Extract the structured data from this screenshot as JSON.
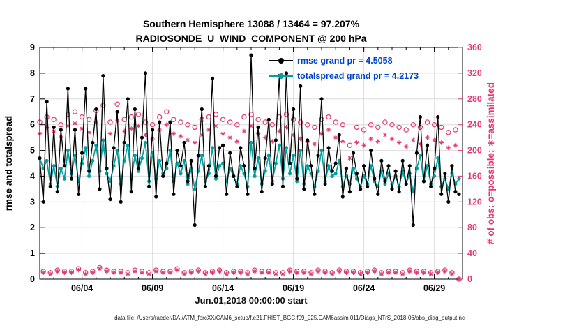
{
  "colors": {
    "rmse_black": "#000000",
    "spread_teal": "#00a0a0",
    "obs_pink": "#e03a76",
    "legend_text": "#0044cc",
    "grid": "#dcdcdc"
  },
  "chart_data": {
    "type": "line",
    "title": "Southern Hemisphere 13088 / 13464 = 97.207%",
    "subtitle": "RADIOSONDE_U_WIND_COMPONENT @ 200 hPa",
    "xlabel": "Jun.01,2018 00:00:00 start",
    "ylabel_left": "rmse and totalspread",
    "ylabel_right": "# of obs: o=possible; ∗=assimilated",
    "caption": "data file: /Users/raeder/DAI/ATM_forcXX/CAM6_setup/f.e21.FHIST_BGC.f09_025.CAM6assim.011/Diags_NTrS_2018-06/obs_diag_output.nc",
    "xlim": [
      0,
      30
    ],
    "ylim_left": [
      0,
      9
    ],
    "ylim_right": [
      0,
      360
    ],
    "x_start_day": 0,
    "x_step_days": 0.25,
    "x_unit": "days since Jun 1, 2018 00:00 UTC (4 obs times per day)",
    "yticks_left": [
      0,
      1,
      2,
      3,
      4,
      5,
      6,
      7,
      8,
      9
    ],
    "yticks_right": [
      0,
      40,
      80,
      120,
      160,
      200,
      240,
      280,
      320,
      360
    ],
    "xticks": [
      {
        "day": 3,
        "label": "06/04"
      },
      {
        "day": 8,
        "label": "06/09"
      },
      {
        "day": 13,
        "label": "06/14"
      },
      {
        "day": 18,
        "label": "06/19"
      },
      {
        "day": 23,
        "label": "06/24"
      },
      {
        "day": 28,
        "label": "06/29"
      }
    ],
    "grid": true,
    "legend_position": "top-center-inside",
    "series": [
      {
        "name": "rmse",
        "legend": "rmse grand pr = 4.5058",
        "color": "#000000",
        "axis": "left",
        "line": true,
        "line_width": 1.3,
        "marker": "dot",
        "values": [
          4.7,
          3.0,
          6.9,
          3.6,
          5.9,
          3.4,
          5.8,
          4.4,
          7.4,
          3.9,
          5.8,
          3.3,
          4.9,
          7.4,
          4.2,
          5.3,
          6.6,
          3.5,
          7.9,
          4.3,
          3.1,
          5.1,
          6.5,
          3.0,
          5.3,
          7.0,
          3.4,
          6.6,
          4.3,
          5.5,
          8.0,
          3.6,
          5.8,
          3.2,
          6.1,
          4.0,
          4.5,
          6.1,
          3.3,
          5.0,
          4.4,
          5.3,
          3.8,
          4.6,
          2.1,
          4.8,
          6.6,
          3.6,
          4.4,
          7.8,
          4.0,
          5.1,
          5.2,
          3.3,
          4.9,
          4.0,
          3.6,
          5.1,
          4.4,
          3.3,
          8.7,
          4.3,
          5.9,
          3.4,
          4.7,
          6.2,
          3.7,
          5.4,
          7.9,
          3.6,
          8.0,
          4.5,
          6.6,
          3.9,
          7.5,
          3.5,
          5.4,
          4.4,
          3.3,
          4.8,
          7.0,
          3.7,
          5.1,
          4.2,
          4.5,
          5.6,
          3.2,
          4.3,
          3.4,
          4.9,
          4.1,
          3.5,
          4.4,
          3.6,
          5.0,
          3.9,
          3.3,
          4.6,
          3.8,
          4.4,
          3.5,
          4.2,
          3.4,
          4.6,
          3.7,
          4.4,
          2.1,
          4.9,
          6.3,
          3.8,
          5.2,
          3.6,
          4.3,
          6.3,
          3.3,
          4.1,
          3.0,
          4.4,
          3.4,
          3.3
        ]
      },
      {
        "name": "totalspread",
        "legend": "totalspread grand pr = 4.2173",
        "color": "#00a0a0",
        "axis": "left",
        "line": true,
        "line_width": 1.7,
        "marker": "dot",
        "values": [
          4.7,
          4.3,
          4.6,
          3.7,
          4.4,
          3.6,
          4.3,
          3.9,
          5.0,
          4.1,
          4.8,
          3.8,
          4.5,
          5.1,
          4.0,
          4.6,
          5.2,
          4.2,
          5.4,
          4.1,
          3.8,
          4.4,
          5.0,
          3.7,
          4.6,
          5.2,
          3.9,
          4.8,
          4.2,
          4.7,
          5.3,
          3.8,
          4.9,
          3.9,
          4.6,
          4.1,
          4.3,
          5.0,
          3.8,
          4.5,
          4.1,
          4.6,
          3.7,
          4.3,
          3.5,
          4.2,
          4.8,
          3.8,
          4.1,
          5.1,
          3.9,
          4.4,
          4.5,
          3.8,
          4.3,
          4.0,
          3.7,
          4.4,
          4.1,
          3.6,
          5.3,
          4.0,
          4.7,
          3.7,
          4.2,
          4.8,
          3.8,
          4.5,
          5.2,
          3.9,
          5.1,
          4.1,
          4.8,
          3.8,
          5.0,
          3.7,
          4.4,
          4.1,
          3.6,
          4.2,
          5.0,
          3.8,
          4.4,
          4.0,
          4.1,
          4.6,
          3.6,
          4.0,
          3.7,
          4.3,
          3.9,
          3.6,
          4.0,
          3.7,
          4.4,
          3.8,
          3.6,
          4.2,
          3.7,
          4.1,
          3.7,
          4.0,
          3.6,
          4.2,
          3.7,
          4.1,
          3.4,
          4.3,
          4.8,
          3.8,
          4.4,
          3.7,
          4.0,
          4.7,
          3.6,
          3.9,
          3.5,
          4.1,
          3.7,
          3.9
        ]
      },
      {
        "name": "possible",
        "legend": "o=possible",
        "color": "#e03a76",
        "axis": "right",
        "line": false,
        "marker": "circle-open",
        "values": [
          244,
          12,
          252,
          10,
          248,
          14,
          240,
          12,
          256,
          12,
          260,
          16,
          252,
          10,
          248,
          12,
          262,
          18,
          270,
          14,
          244,
          12,
          272,
          12,
          248,
          10,
          252,
          14,
          256,
          12,
          244,
          10,
          240,
          14,
          252,
          12,
          260,
          12,
          248,
          16,
          244,
          10,
          240,
          12,
          236,
          14,
          248,
          10,
          252,
          12,
          256,
          14,
          248,
          10,
          244,
          12,
          240,
          12,
          252,
          10,
          256,
          14,
          248,
          12,
          244,
          12,
          240,
          10,
          252,
          10,
          256,
          14,
          248,
          12,
          244,
          12,
          240,
          10,
          236,
          14,
          248,
          12,
          252,
          10,
          244,
          14,
          240,
          12,
          208,
          12,
          236,
          10,
          232,
          12,
          240,
          14,
          236,
          10,
          244,
          12,
          240,
          12,
          236,
          10,
          232,
          14,
          240,
          12,
          236,
          12,
          244,
          10,
          240,
          12,
          236,
          14,
          228,
          10,
          232,
          0
        ]
      },
      {
        "name": "assimilated",
        "legend": "∗=assimilated",
        "color": "#e03a76",
        "axis": "right",
        "line": false,
        "marker": "asterisk",
        "values": [
          226,
          10,
          236,
          8,
          230,
          12,
          222,
          10,
          238,
          10,
          242,
          14,
          234,
          8,
          228,
          10,
          244,
          16,
          200,
          12,
          226,
          10,
          246,
          10,
          230,
          8,
          234,
          12,
          238,
          10,
          224,
          8,
          218,
          12,
          232,
          10,
          240,
          10,
          226,
          14,
          222,
          8,
          216,
          10,
          212,
          12,
          224,
          8,
          232,
          10,
          238,
          12,
          226,
          8,
          220,
          10,
          214,
          10,
          230,
          8,
          238,
          12,
          226,
          10,
          220,
          10,
          214,
          8,
          230,
          8,
          236,
          12,
          224,
          10,
          218,
          10,
          214,
          8,
          210,
          12,
          226,
          10,
          232,
          8,
          220,
          12,
          214,
          10,
          188,
          10,
          212,
          8,
          208,
          10,
          218,
          12,
          214,
          8,
          224,
          10,
          218,
          10,
          212,
          8,
          206,
          12,
          216,
          10,
          210,
          10,
          220,
          8,
          216,
          10,
          212,
          12,
          204,
          8,
          208,
          0
        ]
      }
    ]
  }
}
